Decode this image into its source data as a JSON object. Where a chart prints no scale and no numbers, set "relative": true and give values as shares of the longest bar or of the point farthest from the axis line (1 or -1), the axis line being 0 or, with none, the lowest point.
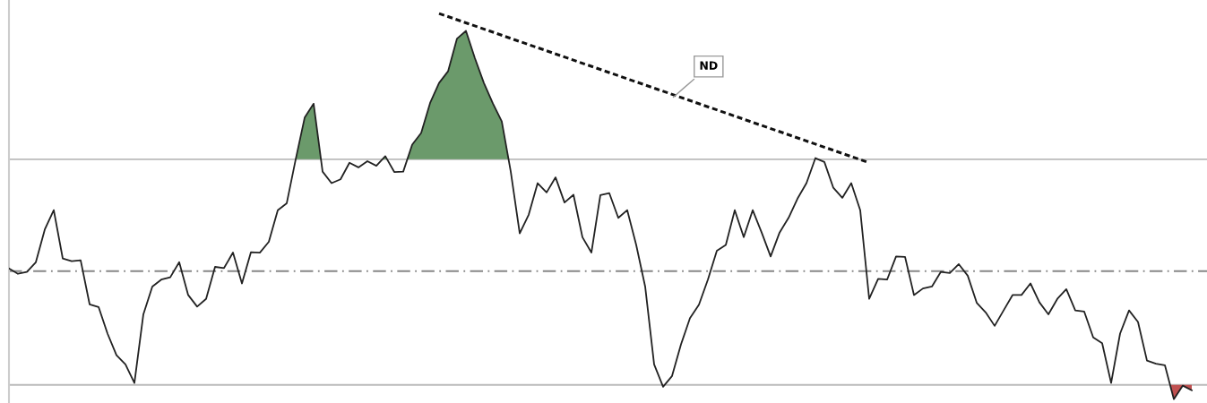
{
  "chart_data": {
    "type": "line",
    "relative": true,
    "categories": [
      null,
      null,
      null,
      null,
      null,
      null,
      null,
      null,
      null,
      null,
      null,
      null,
      null,
      null,
      null,
      null,
      null,
      null,
      null,
      null,
      null,
      null,
      null,
      null,
      null,
      null,
      null,
      null,
      null,
      null,
      null,
      null,
      null,
      null,
      null,
      null,
      null,
      null,
      null,
      null,
      null,
      null,
      null,
      null,
      null,
      null,
      null,
      null,
      null,
      null,
      null,
      null,
      null,
      null,
      null,
      null,
      null,
      null,
      null,
      null,
      null,
      null,
      null,
      null,
      null,
      null,
      null,
      null,
      null,
      null,
      null,
      null,
      null,
      null,
      null,
      null,
      null,
      null,
      null,
      null,
      null,
      null,
      null,
      null,
      null,
      null,
      null,
      null,
      null,
      null,
      null,
      null,
      null,
      null,
      null,
      null,
      null,
      null,
      null,
      null,
      null,
      null,
      null,
      null,
      null,
      null,
      null,
      null,
      null,
      null,
      null,
      null,
      null,
      null,
      null,
      null,
      null,
      null,
      null,
      null,
      null,
      null,
      null,
      null,
      null,
      null,
      null,
      null,
      null,
      null,
      null,
      null,
      null
    ],
    "series": [
      {
        "color": "#222222",
        "line_style": "solid",
        "values": [
          0.339,
          0.325,
          0.33,
          0.355,
          0.44,
          0.49,
          0.365,
          0.358,
          0.36,
          0.246,
          0.239,
          0.17,
          0.114,
          0.09,
          0.042,
          0.22,
          0.292,
          0.31,
          0.316,
          0.355,
          0.27,
          0.24,
          0.26,
          0.343,
          0.34,
          0.38,
          0.3,
          0.381,
          0.38,
          0.408,
          0.49,
          0.508,
          0.622,
          0.73,
          0.766,
          0.59,
          0.56,
          0.57,
          0.613,
          0.601,
          0.617,
          0.605,
          0.63,
          0.589,
          0.59,
          0.66,
          0.69,
          0.768,
          0.82,
          0.85,
          0.935,
          0.955,
          0.884,
          0.82,
          0.767,
          0.72,
          0.59,
          0.43,
          0.478,
          0.56,
          0.536,
          0.575,
          0.51,
          0.53,
          0.42,
          0.38,
          0.529,
          0.534,
          0.47,
          0.49,
          0.4,
          0.292,
          0.09,
          0.032,
          0.06,
          0.142,
          0.21,
          0.245,
          0.31,
          0.385,
          0.4,
          0.49,
          0.42,
          0.49,
          0.432,
          0.37,
          0.432,
          0.47,
          0.52,
          0.56,
          0.625,
          0.615,
          0.548,
          0.522,
          0.56,
          0.49,
          0.26,
          0.312,
          0.31,
          0.37,
          0.369,
          0.27,
          0.287,
          0.292,
          0.33,
          0.327,
          0.35,
          0.32,
          0.25,
          0.225,
          0.19,
          0.23,
          0.27,
          0.27,
          0.3,
          0.251,
          0.22,
          0.26,
          0.285,
          0.23,
          0.227,
          0.16,
          0.145,
          0.042,
          0.17,
          0.23,
          0.2,
          0.1,
          0.092,
          0.088,
          0.0,
          0.035,
          0.023
        ]
      },
      {
        "color": "#111111",
        "line_style": "dotted",
        "values": [
          null,
          null,
          null,
          null,
          null,
          null,
          null,
          null,
          null,
          null,
          null,
          null,
          null,
          null,
          null,
          null,
          null,
          null,
          null,
          null,
          null,
          null,
          null,
          null,
          null,
          null,
          null,
          null,
          null,
          null,
          null,
          null,
          null,
          null,
          null,
          null,
          null,
          null,
          null,
          null,
          null,
          null,
          null,
          null,
          null,
          null,
          null,
          null,
          1.0,
          null,
          null,
          null,
          null,
          null,
          null,
          null,
          null,
          null,
          null,
          null,
          null,
          null,
          null,
          null,
          null,
          null,
          null,
          null,
          null,
          null,
          null,
          null,
          null,
          null,
          null,
          null,
          null,
          null,
          null,
          null,
          null,
          null,
          null,
          null,
          null,
          null,
          null,
          null,
          null,
          null,
          null,
          null,
          null,
          null,
          null,
          null,
          0.613,
          null,
          null,
          null,
          null,
          null,
          null,
          null,
          null,
          null,
          null,
          null,
          null,
          null,
          null,
          null,
          null,
          null,
          null,
          null,
          null,
          null,
          null,
          null,
          null,
          null,
          null,
          null,
          null,
          null,
          null,
          null,
          null,
          null,
          null,
          null,
          null
        ]
      }
    ],
    "ref_lines": [
      {
        "axis": "y",
        "value": 0.622,
        "color": "#bbbbbb",
        "line_style": "solid"
      },
      {
        "axis": "y",
        "value": 0.332,
        "color": "#888888",
        "line_style": "dashdot"
      },
      {
        "axis": "y",
        "value": 0.037,
        "color": "#bbbbbb",
        "line_style": "solid"
      }
    ],
    "annotations": [
      "ND"
    ]
  }
}
